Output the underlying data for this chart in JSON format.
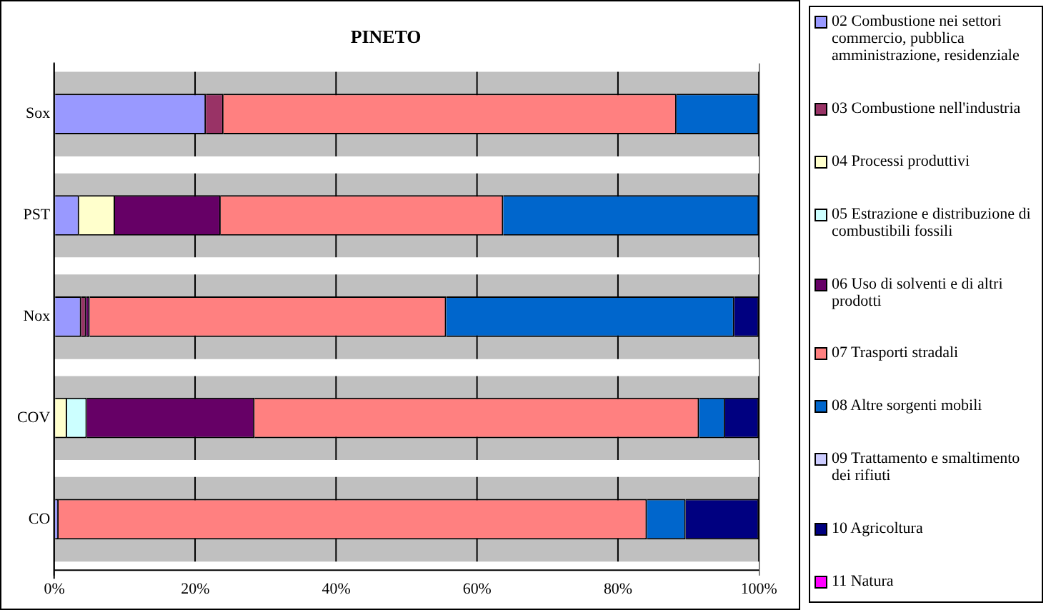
{
  "chart_data": {
    "type": "bar",
    "orientation": "horizontal",
    "stacked": true,
    "title": "PINETO",
    "categories": [
      "Sox",
      "PST",
      "Nox",
      "COV",
      "CO"
    ],
    "series": [
      {
        "name": "02 Combustione nei settori commercio, pubblica amministrazione, residenziale",
        "color": "#9999ff",
        "values": [
          21.5,
          3.5,
          3.8,
          0,
          0.6
        ]
      },
      {
        "name": "03 Combustione nell'industria",
        "color": "#993366",
        "values": [
          2.5,
          0,
          0.7,
          0,
          0
        ]
      },
      {
        "name": "04 Processi produttivi",
        "color": "#ffffcc",
        "values": [
          0,
          5.1,
          0,
          1.8,
          0
        ]
      },
      {
        "name": "05 Estrazione e distribuzione di combustibili fossili",
        "color": "#ccffff",
        "values": [
          0,
          0,
          0,
          2.8,
          0
        ]
      },
      {
        "name": "06 Uso di solventi e di altri prodotti",
        "color": "#660066",
        "values": [
          0,
          15.0,
          0.5,
          23.8,
          0
        ]
      },
      {
        "name": "07 Trasporti stradali",
        "color": "#ff8080",
        "values": [
          64.3,
          40.1,
          50.6,
          63.1,
          83.5
        ]
      },
      {
        "name": "08 Altre sorgenti mobili",
        "color": "#0066cc",
        "values": [
          11.7,
          36.3,
          40.9,
          3.7,
          5.5
        ]
      },
      {
        "name": "09 Trattamento e smaltimento dei rifiuti",
        "color": "#ccccff",
        "values": [
          0,
          0,
          0,
          0,
          0
        ]
      },
      {
        "name": "10 Agricoltura",
        "color": "#000080",
        "values": [
          0,
          0,
          3.5,
          4.8,
          10.4
        ]
      },
      {
        "name": "11 Natura",
        "color": "#ff00ff",
        "values": [
          0,
          0,
          0,
          0,
          0
        ]
      }
    ],
    "xlim": [
      0,
      100
    ],
    "xticks": [
      {
        "value": 0,
        "label": "0%"
      },
      {
        "value": 20,
        "label": "20%"
      },
      {
        "value": 40,
        "label": "40%"
      },
      {
        "value": 60,
        "label": "60%"
      },
      {
        "value": 80,
        "label": "80%"
      },
      {
        "value": 100,
        "label": "100%"
      }
    ],
    "grid": "x",
    "legend": "right"
  }
}
